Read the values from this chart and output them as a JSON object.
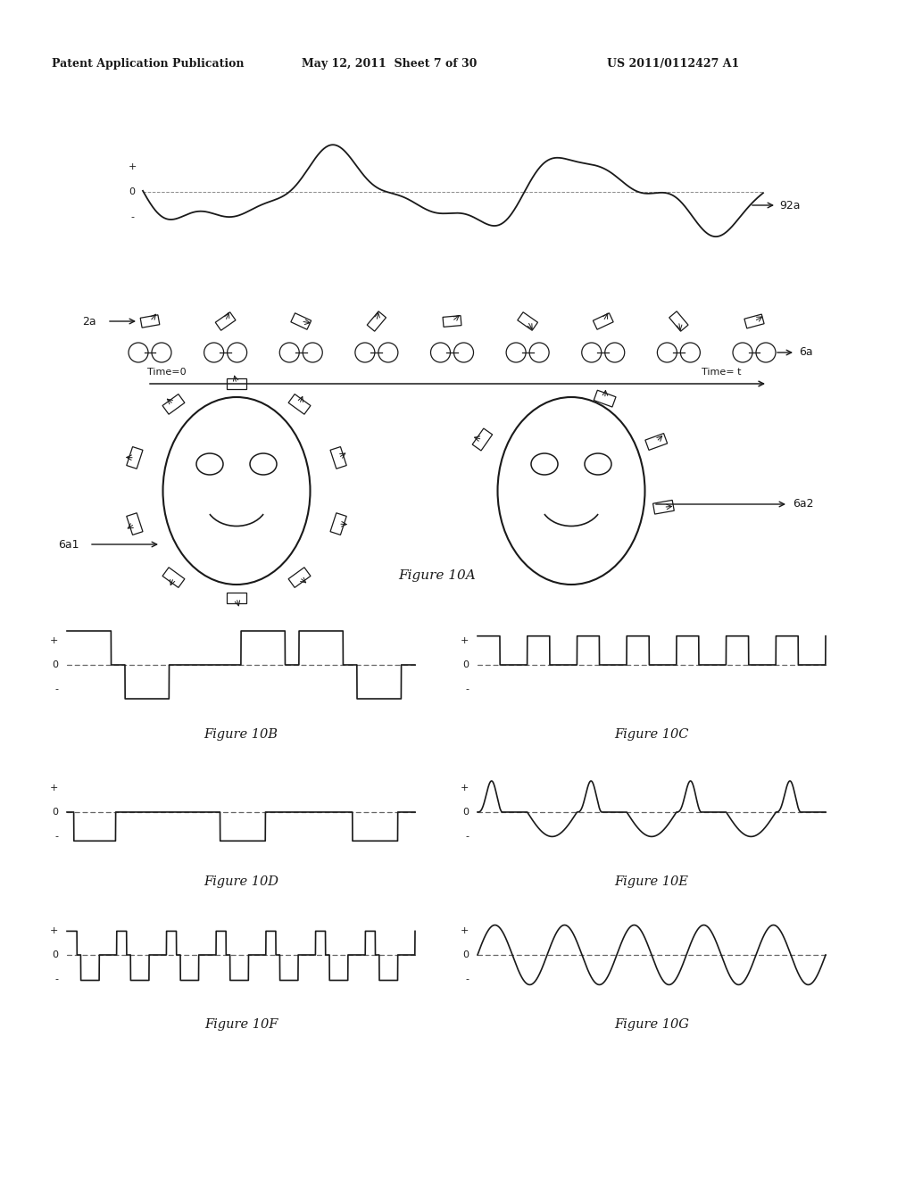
{
  "bg_color": "#ffffff",
  "header_left": "Patent Application Publication",
  "header_center": "May 12, 2011  Sheet 7 of 30",
  "header_right": "US 2011/0112427 A1",
  "fig10A_caption": "Figure 10A",
  "fig10B_caption": "Figure 10B",
  "fig10C_caption": "Figure 10C",
  "fig10D_caption": "Figure 10D",
  "fig10E_caption": "Figure 10E",
  "fig10F_caption": "Figure 10F",
  "fig10G_caption": "Figure 10G",
  "line_color": "#1a1a1a",
  "dotted_color": "#666666"
}
